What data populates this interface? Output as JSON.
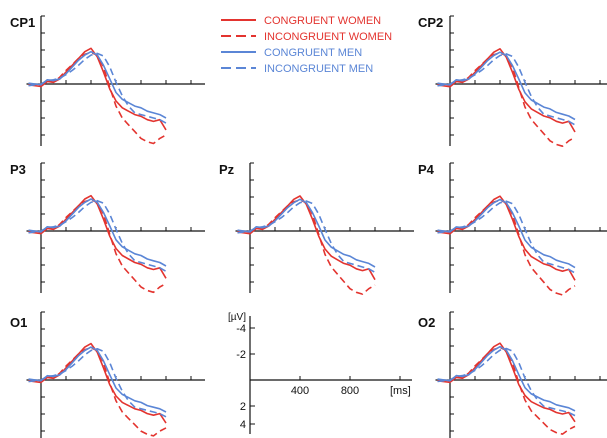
{
  "chart_data": {
    "type": "line",
    "panels": [
      {
        "label": "CP1"
      },
      {
        "label": "CP2"
      },
      {
        "label": "P3"
      },
      {
        "label": "Pz"
      },
      {
        "label": "P4"
      },
      {
        "label": "O1"
      },
      {
        "label": "O2"
      }
    ],
    "legend": [
      {
        "name": "CONGRUENT WOMEN",
        "color": "#e3342f",
        "dash": "solid"
      },
      {
        "name": "INCONGRUENT WOMEN",
        "color": "#e3342f",
        "dash": "dashed"
      },
      {
        "name": "CONGRUENT MEN",
        "color": "#5b86d6",
        "dash": "solid"
      },
      {
        "name": "INCONGRUENT MEN",
        "color": "#5b86d6",
        "dash": "dashed"
      }
    ],
    "scale": {
      "ylabel": "[µV]",
      "xlabel": "[ms]",
      "x_ticks": [
        "400",
        "800"
      ],
      "y_ticks_neg": [
        "-4",
        "-2"
      ],
      "y_ticks_pos": [
        "2",
        "4"
      ],
      "note": "negative up"
    },
    "x_ms": [
      -100,
      0,
      50,
      100,
      150,
      200,
      250,
      300,
      350,
      400,
      450,
      500,
      550,
      600,
      650,
      700,
      750,
      800,
      850,
      900,
      950,
      1000
    ],
    "series": [
      {
        "name": "CONGRUENT WOMEN",
        "values": [
          0.1,
          0.3,
          -0.3,
          -0.2,
          -0.6,
          -1.4,
          -2.2,
          -3.0,
          -3.8,
          -4.2,
          -3.2,
          -1.4,
          0.6,
          2.0,
          2.8,
          3.2,
          3.6,
          3.8,
          4.2,
          4.4,
          4.2,
          5.4
        ]
      },
      {
        "name": "INCONGRUENT WOMEN",
        "values": [
          0.0,
          0.2,
          -0.4,
          -0.2,
          -0.8,
          -1.6,
          -2.3,
          -3.0,
          -3.5,
          -3.7,
          -3.4,
          -2.0,
          0.4,
          2.6,
          4.0,
          4.8,
          5.6,
          6.4,
          6.8,
          7.0,
          6.4,
          6.0
        ]
      },
      {
        "name": "CONGRUENT MEN",
        "values": [
          -0.1,
          0.1,
          -0.5,
          -0.4,
          -0.6,
          -1.2,
          -2.0,
          -2.8,
          -3.4,
          -3.8,
          -3.4,
          -2.2,
          -0.6,
          1.0,
          1.8,
          2.2,
          2.6,
          2.8,
          3.2,
          3.4,
          3.6,
          4.0
        ]
      },
      {
        "name": "INCONGRUENT MEN",
        "values": [
          0.2,
          0.0,
          -0.4,
          -0.5,
          -0.7,
          -1.1,
          -1.6,
          -2.2,
          -2.9,
          -3.4,
          -3.6,
          -3.3,
          -2.0,
          -0.2,
          1.4,
          2.6,
          3.4,
          3.6,
          3.8,
          4.0,
          4.2,
          4.6
        ]
      }
    ]
  }
}
